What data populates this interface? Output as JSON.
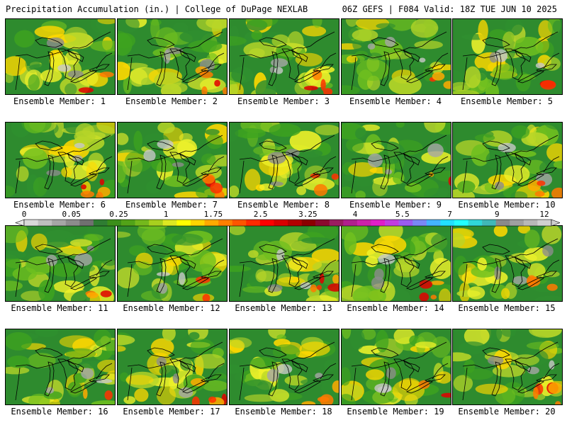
{
  "header": {
    "title": "Precipitation Accumulation (in.) | College of DuPage NEXLAB",
    "run_info": "06Z GEFS | F084 Valid: 18Z TUE JUN 10 2025"
  },
  "members": [
    {
      "label": "Ensemble Member: 1"
    },
    {
      "label": "Ensemble Member: 2"
    },
    {
      "label": "Ensemble Member: 3"
    },
    {
      "label": "Ensemble Member: 4"
    },
    {
      "label": "Ensemble Member: 5"
    },
    {
      "label": "Ensemble Member: 6"
    },
    {
      "label": "Ensemble Member: 7"
    },
    {
      "label": "Ensemble Member: 8"
    },
    {
      "label": "Ensemble Member: 9"
    },
    {
      "label": "Ensemble Member: 10"
    },
    {
      "label": "Ensemble Member: 11"
    },
    {
      "label": "Ensemble Member: 12"
    },
    {
      "label": "Ensemble Member: 13"
    },
    {
      "label": "Ensemble Member: 14"
    },
    {
      "label": "Ensemble Member: 15"
    },
    {
      "label": "Ensemble Member: 16"
    },
    {
      "label": "Ensemble Member: 17"
    },
    {
      "label": "Ensemble Member: 18"
    },
    {
      "label": "Ensemble Member: 19"
    },
    {
      "label": "Ensemble Member: 20"
    }
  ],
  "color_scale": {
    "tick_labels": [
      "0",
      "0.05",
      "0.25",
      "1",
      "1.75",
      "2.5",
      "3.25",
      "4",
      "5.5",
      "7",
      "9",
      "12"
    ],
    "colors": [
      "#d9d9d9",
      "#bfbfbf",
      "#a6a6a6",
      "#8c8c8c",
      "#707070",
      "#2e7d32",
      "#3b8f1a",
      "#52a318",
      "#74b81c",
      "#a8d01e",
      "#dde822",
      "#ffff00",
      "#ffd500",
      "#ffaa00",
      "#ff7f00",
      "#ff5500",
      "#ff2a00",
      "#ff0000",
      "#d90000",
      "#b30000",
      "#8c0000",
      "#8b0a2e",
      "#9b1d60",
      "#b0208c",
      "#cc22aa",
      "#e01ec8",
      "#c23ce0",
      "#9a5cf0",
      "#7a88f5",
      "#44b4ff",
      "#22e0ff",
      "#22ffff",
      "#30d8d8",
      "#40b8b8",
      "#8a8a8a",
      "#a0a0a0",
      "#b8b8b8",
      "#d0d0d0"
    ]
  },
  "colors": {
    "background": "#ffffff",
    "map_base": "#2e8b2e",
    "coastline": "#000000"
  }
}
